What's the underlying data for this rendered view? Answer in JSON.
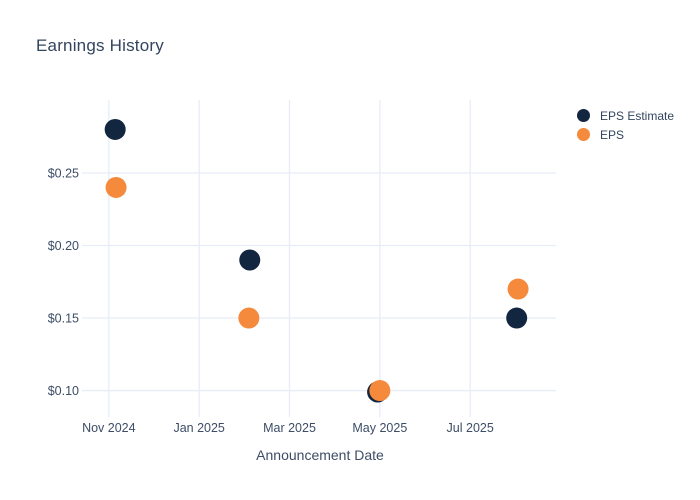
{
  "chart_data": {
    "type": "scatter",
    "title": "Earnings History",
    "xlabel": "Announcement Date",
    "ylabel": "",
    "x_axis": {
      "unit": "months-since-Nov-2024",
      "ticks": [
        0,
        2,
        4,
        6,
        8
      ],
      "tick_labels": [
        "Nov 2024",
        "Jan 2025",
        "Mar 2025",
        "May 2025",
        "Jul 2025"
      ],
      "range": [
        -0.55,
        9.9
      ]
    },
    "y_axis": {
      "ticks": [
        0.1,
        0.15,
        0.2,
        0.25
      ],
      "tick_labels": [
        "$0.10",
        "$0.15",
        "$0.20",
        "$0.25"
      ],
      "range": [
        0.0866,
        0.3003
      ]
    },
    "series": [
      {
        "name": "EPS Estimate",
        "color": "#13263f",
        "points": [
          {
            "x": 0.14,
            "y": 0.28
          },
          {
            "x": 3.12,
            "y": 0.19
          },
          {
            "x": 5.95,
            "y": 0.099
          },
          {
            "x": 9.03,
            "y": 0.15
          }
        ]
      },
      {
        "name": "EPS",
        "color": "#f5893c",
        "points": [
          {
            "x": 0.16,
            "y": 0.24
          },
          {
            "x": 3.1,
            "y": 0.15
          },
          {
            "x": 6.0,
            "y": 0.1
          },
          {
            "x": 9.06,
            "y": 0.17
          }
        ]
      }
    ],
    "grid": true,
    "legend_position": "outside-top-right",
    "marker_diameter_px": 21,
    "colors": {
      "grid": "#e7edf6",
      "tick_text": "#3d4d66",
      "title_text": "#33455e",
      "background": "#ffffff"
    }
  }
}
